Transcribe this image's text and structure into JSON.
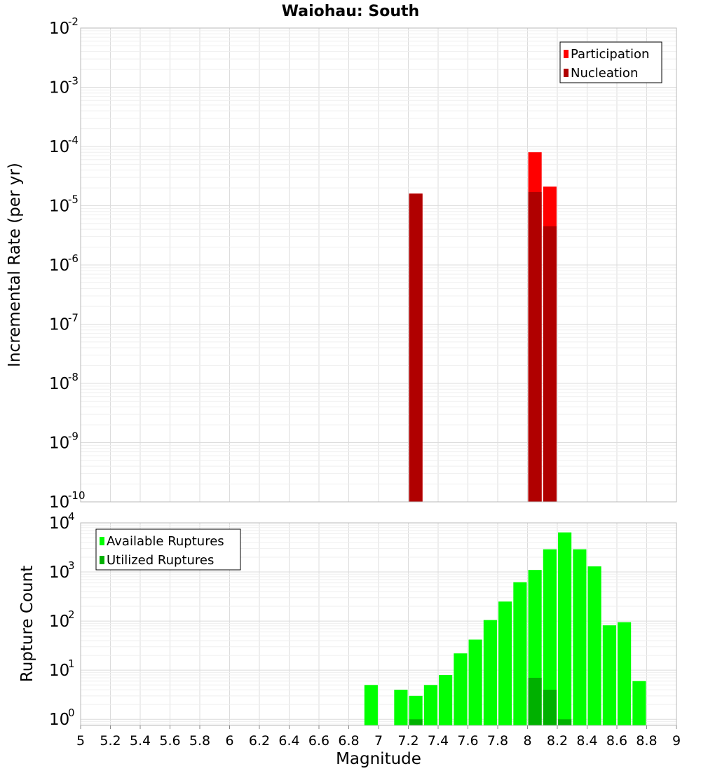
{
  "chart_data": [
    {
      "type": "bar",
      "panel": "top",
      "title": "Waiohau: South",
      "ylabel": "Incremental Rate (per yr)",
      "xlabel": "",
      "y_scale": "log",
      "ylim": [
        1e-10,
        0.01
      ],
      "xlim": [
        5,
        9
      ],
      "y_ticks": [
        {
          "base": "10",
          "exp": "-10",
          "value": 1e-10
        },
        {
          "base": "10",
          "exp": "-9",
          "value": 1e-09
        },
        {
          "base": "10",
          "exp": "-8",
          "value": 1e-08
        },
        {
          "base": "10",
          "exp": "-7",
          "value": 1e-07
        },
        {
          "base": "10",
          "exp": "-6",
          "value": 1e-06
        },
        {
          "base": "10",
          "exp": "-5",
          "value": 1e-05
        },
        {
          "base": "10",
          "exp": "-4",
          "value": 0.0001
        },
        {
          "base": "10",
          "exp": "-3",
          "value": 0.001
        },
        {
          "base": "10",
          "exp": "-2",
          "value": 0.01
        }
      ],
      "grid": true,
      "legend_position": "top-right",
      "series": [
        {
          "name": "Participation",
          "color": "#ff0000",
          "points": [
            {
              "x": 7.25,
              "y": 1.6e-05
            },
            {
              "x": 8.05,
              "y": 8e-05
            },
            {
              "x": 8.15,
              "y": 2.1e-05
            }
          ]
        },
        {
          "name": "Nucleation",
          "color": "#b00000",
          "points": [
            {
              "x": 7.25,
              "y": 1.6e-05
            },
            {
              "x": 8.05,
              "y": 1.7e-05
            },
            {
              "x": 8.15,
              "y": 4.5e-06
            }
          ]
        }
      ]
    },
    {
      "type": "bar",
      "panel": "bottom",
      "title": "",
      "ylabel": "Rupture Count",
      "xlabel": "Magnitude",
      "y_scale": "log",
      "ylim": [
        0.75,
        10000
      ],
      "xlim": [
        5,
        9
      ],
      "x_ticks": [
        "5",
        "5.2",
        "5.4",
        "5.6",
        "5.8",
        "6",
        "6.2",
        "6.4",
        "6.6",
        "6.8",
        "7",
        "7.2",
        "7.4",
        "7.6",
        "7.8",
        "8",
        "8.2",
        "8.4",
        "8.6",
        "8.8",
        "9"
      ],
      "y_ticks": [
        {
          "base": "10",
          "exp": "0",
          "value": 1
        },
        {
          "base": "10",
          "exp": "1",
          "value": 10
        },
        {
          "base": "10",
          "exp": "2",
          "value": 100
        },
        {
          "base": "10",
          "exp": "3",
          "value": 1000
        },
        {
          "base": "10",
          "exp": "4",
          "value": 10000
        }
      ],
      "grid": true,
      "legend_position": "top-left",
      "series": [
        {
          "name": "Available Ruptures",
          "color": "#00ff00",
          "points": [
            {
              "x": 6.95,
              "y": 5
            },
            {
              "x": 7.15,
              "y": 4
            },
            {
              "x": 7.25,
              "y": 3
            },
            {
              "x": 7.35,
              "y": 5
            },
            {
              "x": 7.45,
              "y": 8
            },
            {
              "x": 7.55,
              "y": 22
            },
            {
              "x": 7.65,
              "y": 42
            },
            {
              "x": 7.75,
              "y": 105
            },
            {
              "x": 7.85,
              "y": 250
            },
            {
              "x": 7.95,
              "y": 620
            },
            {
              "x": 8.05,
              "y": 1100
            },
            {
              "x": 8.15,
              "y": 2900
            },
            {
              "x": 8.25,
              "y": 6400
            },
            {
              "x": 8.35,
              "y": 2900
            },
            {
              "x": 8.45,
              "y": 1300
            },
            {
              "x": 8.55,
              "y": 82
            },
            {
              "x": 8.65,
              "y": 95
            },
            {
              "x": 8.75,
              "y": 6
            }
          ]
        },
        {
          "name": "Utilized Ruptures",
          "color": "#00b000",
          "points": [
            {
              "x": 7.25,
              "y": 1
            },
            {
              "x": 8.05,
              "y": 7
            },
            {
              "x": 8.15,
              "y": 4
            },
            {
              "x": 8.25,
              "y": 1
            }
          ]
        }
      ]
    }
  ]
}
